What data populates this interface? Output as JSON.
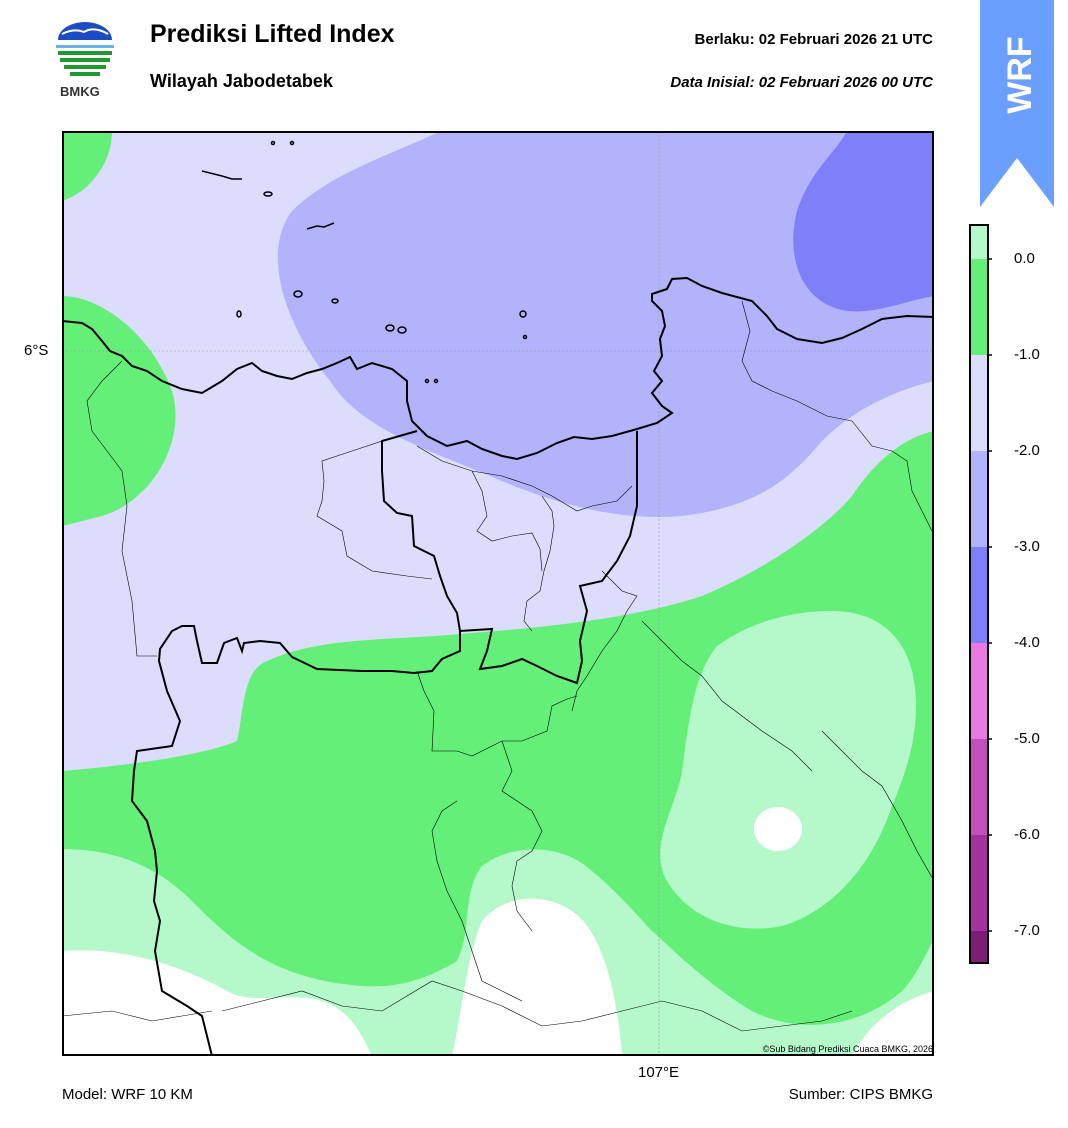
{
  "header": {
    "title": "Prediksi Lifted Index",
    "subtitle": "Wilayah Jabodetabek",
    "valid_time": "Berlaku:  02 Februari 2026 21 UTC",
    "init_time": "Data Inisial:  02 Februari 2026 00 UTC"
  },
  "logo": {
    "text": "BMKG",
    "icon": "bmkg-logo-icon"
  },
  "badge": {
    "text": "WRF",
    "color": "#6a9eff"
  },
  "map": {
    "lat_label": "6°S",
    "lon_label": "107°E",
    "copyright": "©Sub Bidang Prediksi Cuaca BMKG, 2026"
  },
  "colorbar": {
    "ticks": [
      "0.0",
      "-1.0",
      "-2.0",
      "-3.0",
      "-4.0",
      "-5.0",
      "-6.0",
      "-7.0"
    ],
    "colors": [
      "#b5f9cb",
      "#64ef78",
      "#dcdcfc",
      "#b3b3fc",
      "#7f7ffa",
      "#e779e0",
      "#c24fba",
      "#a4339f",
      "#7c1d78"
    ]
  },
  "footer": {
    "model": "Model: WRF 10 KM",
    "source": "Sumber: CIPS BMKG"
  }
}
